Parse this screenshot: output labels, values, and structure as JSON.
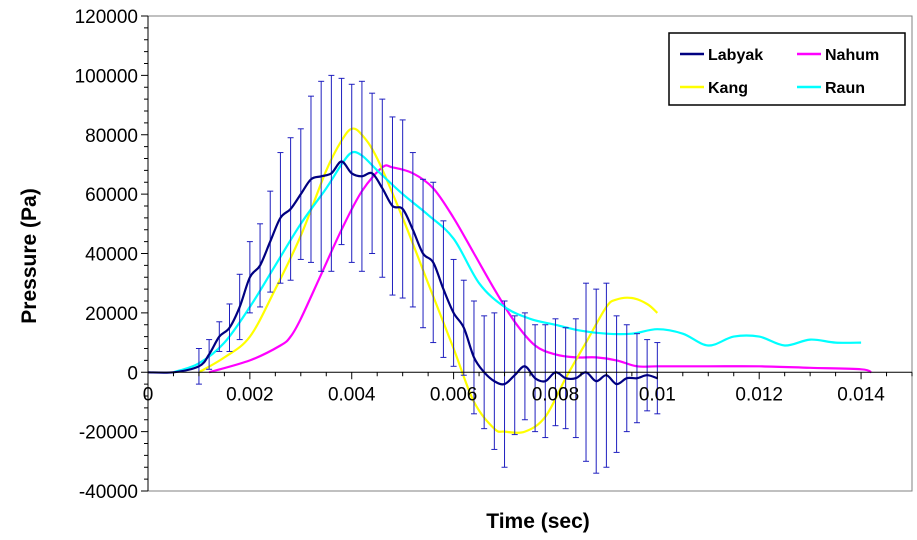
{
  "chart_data": {
    "type": "line",
    "title": "",
    "xlabel": "Time (sec)",
    "ylabel": "Pressure (Pa)",
    "xlim": [
      0,
      0.015
    ],
    "ylim": [
      -40000,
      120000
    ],
    "xticks": [
      0,
      0.002,
      0.004,
      0.006,
      0.008,
      0.01,
      0.012,
      0.014
    ],
    "xtick_labels": [
      "0",
      "0.002",
      "0.004",
      "0.006",
      "0.008",
      "0.01",
      "0.012",
      "0.014"
    ],
    "yticks": [
      -40000,
      -20000,
      0,
      20000,
      40000,
      60000,
      80000,
      100000,
      120000
    ],
    "ytick_labels": [
      "-40000",
      "-20000",
      "0",
      "20000",
      "40000",
      "60000",
      "80000",
      "100000",
      "120000"
    ],
    "grid": false,
    "legend_position": "top-right",
    "series": [
      {
        "name": "Labyak",
        "color": "#000080",
        "x": [
          0,
          0.0005,
          0.001,
          0.0012,
          0.0014,
          0.0016,
          0.0018,
          0.002,
          0.0022,
          0.0024,
          0.0026,
          0.0028,
          0.003,
          0.0032,
          0.0034,
          0.0036,
          0.0038,
          0.004,
          0.0042,
          0.0044,
          0.0046,
          0.0048,
          0.005,
          0.0052,
          0.0054,
          0.0056,
          0.0058,
          0.006,
          0.0062,
          0.0064,
          0.0066,
          0.0068,
          0.007,
          0.0072,
          0.0074,
          0.0076,
          0.0078,
          0.008,
          0.0082,
          0.0084,
          0.0086,
          0.0088,
          0.009,
          0.0092,
          0.0094,
          0.0096,
          0.0098,
          0.01
        ],
        "y": [
          0,
          0,
          2000,
          6000,
          12000,
          15000,
          22000,
          32000,
          36000,
          44000,
          52000,
          55000,
          60000,
          65000,
          66000,
          67000,
          71000,
          67000,
          66000,
          67000,
          62000,
          56000,
          55000,
          48000,
          40000,
          37000,
          28000,
          20000,
          15000,
          5000,
          0,
          -3000,
          -4000,
          -1000,
          2000,
          -2000,
          -3000,
          0,
          -2000,
          -2000,
          0,
          -3000,
          -1000,
          -4000,
          -2000,
          -2000,
          -1000,
          -2000
        ],
        "error": [
          0,
          0,
          6000,
          5000,
          5000,
          8000,
          11000,
          12000,
          14000,
          17000,
          22000,
          24000,
          22000,
          28000,
          32000,
          33000,
          28000,
          30000,
          32000,
          27000,
          30000,
          30000,
          30000,
          26000,
          25000,
          27000,
          23000,
          18000,
          16000,
          19000,
          19000,
          23000,
          28000,
          20000,
          18000,
          18000,
          19000,
          18000,
          17000,
          20000,
          30000,
          31000,
          31000,
          23000,
          18000,
          15000,
          12000,
          12000
        ]
      },
      {
        "name": "Nahum",
        "color": "#ff00ff",
        "x": [
          0.0012,
          0.002,
          0.0026,
          0.0028,
          0.003,
          0.0034,
          0.0038,
          0.0042,
          0.0046,
          0.0048,
          0.0052,
          0.0056,
          0.006,
          0.0064,
          0.0068,
          0.0072,
          0.0076,
          0.008,
          0.0084,
          0.0088,
          0.0092,
          0.0096,
          0.01,
          0.011,
          0.012,
          0.013,
          0.014,
          0.0142
        ],
        "y": [
          0,
          4000,
          9000,
          12000,
          18000,
          33000,
          48000,
          61000,
          69000,
          69000,
          67000,
          62000,
          52000,
          40000,
          28000,
          17000,
          9000,
          6000,
          5000,
          5000,
          4000,
          2000,
          2000,
          2000,
          2000,
          1500,
          1000,
          0
        ]
      },
      {
        "name": "Kang",
        "color": "#ffff00",
        "x": [
          0.001,
          0.0015,
          0.002,
          0.0025,
          0.003,
          0.0035,
          0.0038,
          0.004,
          0.0042,
          0.0045,
          0.005,
          0.0055,
          0.006,
          0.0064,
          0.0068,
          0.007,
          0.0074,
          0.0078,
          0.0082,
          0.0086,
          0.009,
          0.0092,
          0.0095,
          0.0098,
          0.01
        ],
        "y": [
          0,
          5000,
          12000,
          28000,
          46000,
          68000,
          78000,
          82000,
          80000,
          72000,
          52000,
          30000,
          8000,
          -10000,
          -19000,
          -20000,
          -20000,
          -15000,
          -2000,
          10000,
          22000,
          24500,
          25000,
          23000,
          20000
        ]
      },
      {
        "name": "Raun",
        "color": "#00ffff",
        "x": [
          0.0005,
          0.001,
          0.0015,
          0.002,
          0.0025,
          0.003,
          0.0035,
          0.0038,
          0.004,
          0.0042,
          0.0045,
          0.005,
          0.0055,
          0.006,
          0.0065,
          0.007,
          0.0075,
          0.008,
          0.0085,
          0.009,
          0.0095,
          0.01,
          0.0105,
          0.011,
          0.0115,
          0.012,
          0.0125,
          0.013,
          0.0135,
          0.014
        ],
        "y": [
          0,
          3000,
          10000,
          22000,
          36000,
          50000,
          62000,
          70000,
          74000,
          73000,
          68000,
          60000,
          53000,
          45000,
          30000,
          22000,
          18000,
          16000,
          14000,
          13000,
          13000,
          14500,
          13000,
          9000,
          12000,
          12000,
          9000,
          11000,
          10000,
          10000
        ]
      }
    ]
  }
}
